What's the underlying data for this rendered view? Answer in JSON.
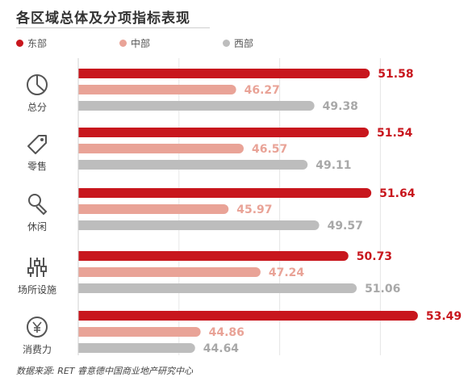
{
  "chart_data": {
    "type": "bar",
    "orientation": "horizontal",
    "title": "各区域总体及分项指标表现",
    "categories": [
      "总分",
      "零售",
      "休闲",
      "场所设施",
      "消费力"
    ],
    "category_icons": [
      "pie-chart-icon",
      "price-tag-icon",
      "microphone-icon",
      "sliders-icon",
      "yen-coin-icon"
    ],
    "series": [
      {
        "name": "东部",
        "color": "#c8161d",
        "values": [
          51.58,
          51.54,
          51.64,
          50.73,
          53.49
        ]
      },
      {
        "name": "中部",
        "color": "#e9a397",
        "values": [
          46.27,
          46.57,
          45.97,
          47.24,
          44.86
        ]
      },
      {
        "name": "西部",
        "color": "#bdbdbd",
        "values": [
          49.38,
          49.11,
          49.57,
          51.06,
          44.64
        ]
      }
    ],
    "label_colors": [
      "#c8161d",
      "#e9a397",
      "#a8a8a8"
    ],
    "xlim": [
      40,
      54
    ],
    "grid": true,
    "legend_position": "top-left",
    "source": "数据来源: RET 睿意德中国商业地产研究中心"
  }
}
